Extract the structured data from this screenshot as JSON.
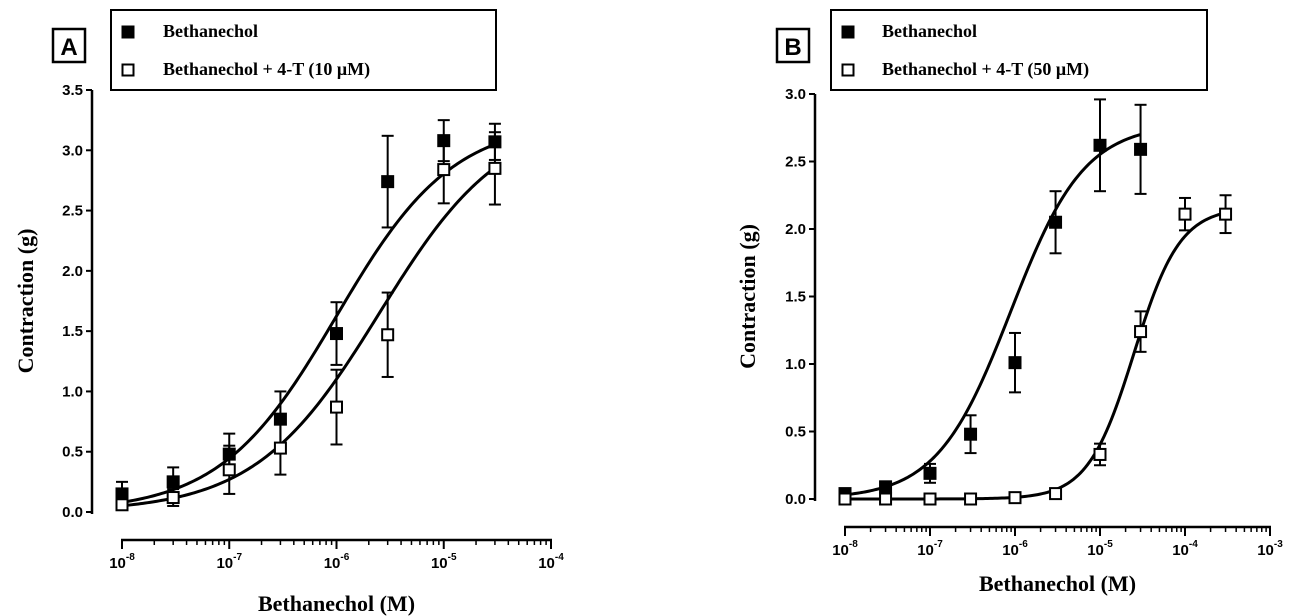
{
  "chart_data": [
    {
      "type": "scatter",
      "panel_label": "A",
      "xlabel": "Bethanechol (M)",
      "ylabel": "Contraction (g)",
      "x_scale": "log",
      "xlim": [
        1e-08,
        0.0001
      ],
      "ylim": [
        0,
        3.5
      ],
      "x_ticks": [
        {
          "value": 1e-08,
          "base": "10",
          "exp": "-8"
        },
        {
          "value": 1e-07,
          "base": "10",
          "exp": "-7"
        },
        {
          "value": 1e-06,
          "base": "10",
          "exp": "-6"
        },
        {
          "value": 1e-05,
          "base": "10",
          "exp": "-5"
        },
        {
          "value": 0.0001,
          "base": "10",
          "exp": "-4"
        }
      ],
      "y_ticks": [
        "0.0",
        "0.5",
        "1.0",
        "1.5",
        "2.0",
        "2.5",
        "3.0",
        "3.5"
      ],
      "grid": false,
      "legend_placement": "top",
      "series": [
        {
          "name": "Bethanechol",
          "marker": "filled-square",
          "x": [
            1e-08,
            3e-08,
            1e-07,
            3e-07,
            1e-06,
            3e-06,
            1e-05,
            3e-05
          ],
          "y": [
            0.15,
            0.25,
            0.48,
            0.77,
            1.48,
            2.74,
            3.08,
            3.07
          ],
          "error": [
            0.1,
            0.12,
            0.17,
            0.23,
            0.26,
            0.38,
            0.17,
            0.15
          ],
          "fit": {
            "bottom": 0.0,
            "top": 3.25,
            "log_ec50": -6.0,
            "hill": 0.8
          }
        },
        {
          "name": "Bethanechol + 4-T (10 μM)",
          "marker": "open-square",
          "x": [
            1e-08,
            3e-08,
            1e-07,
            3e-07,
            1e-06,
            3e-06,
            1e-05,
            3e-05
          ],
          "y": [
            0.06,
            0.12,
            0.35,
            0.53,
            0.87,
            1.47,
            2.84,
            2.85
          ],
          "error": [
            0.04,
            0.07,
            0.2,
            0.22,
            0.31,
            0.35,
            0.28,
            0.3
          ],
          "fit": {
            "bottom": 0.0,
            "top": 3.3,
            "log_ec50": -5.6,
            "hill": 0.75
          }
        }
      ]
    },
    {
      "type": "scatter",
      "panel_label": "B",
      "xlabel": "Bethanechol (M)",
      "ylabel": "Contraction (g)",
      "x_scale": "log",
      "xlim": [
        1e-08,
        0.001
      ],
      "ylim": [
        0,
        3.0
      ],
      "x_ticks": [
        {
          "value": 1e-08,
          "base": "10",
          "exp": "-8"
        },
        {
          "value": 1e-07,
          "base": "10",
          "exp": "-7"
        },
        {
          "value": 1e-06,
          "base": "10",
          "exp": "-6"
        },
        {
          "value": 1e-05,
          "base": "10",
          "exp": "-5"
        },
        {
          "value": 0.0001,
          "base": "10",
          "exp": "-4"
        },
        {
          "value": 0.001,
          "base": "10",
          "exp": "-3"
        }
      ],
      "y_ticks": [
        "0.0",
        "0.5",
        "1.0",
        "1.5",
        "2.0",
        "2.5",
        "3.0"
      ],
      "grid": false,
      "legend_placement": "top",
      "series": [
        {
          "name": "Bethanechol",
          "marker": "filled-square",
          "x": [
            1e-08,
            3e-08,
            1e-07,
            3e-07,
            1e-06,
            3e-06,
            1e-05,
            3e-05
          ],
          "y": [
            0.04,
            0.09,
            0.19,
            0.48,
            1.01,
            2.05,
            2.62,
            2.59
          ],
          "error": [
            0.02,
            0.04,
            0.07,
            0.14,
            0.22,
            0.23,
            0.34,
            0.33
          ],
          "fit": {
            "bottom": 0.0,
            "top": 2.78,
            "log_ec50": -6.05,
            "hill": 1.0
          }
        },
        {
          "name": "Bethanechol + 4-T (50 μM)",
          "marker": "open-square",
          "x": [
            1e-08,
            3e-08,
            1e-07,
            3e-07,
            1e-06,
            3e-06,
            1e-05,
            3e-05,
            0.0001,
            0.0003
          ],
          "y": [
            0.0,
            0.0,
            0.0,
            0.0,
            0.01,
            0.04,
            0.33,
            1.24,
            2.11,
            2.11
          ],
          "error": [
            0.0,
            0.0,
            0.0,
            0.0,
            0.0,
            0.01,
            0.08,
            0.15,
            0.12,
            0.14
          ],
          "fit": {
            "bottom": 0.0,
            "top": 2.16,
            "log_ec50": -4.6,
            "hill": 1.6
          }
        }
      ]
    }
  ]
}
